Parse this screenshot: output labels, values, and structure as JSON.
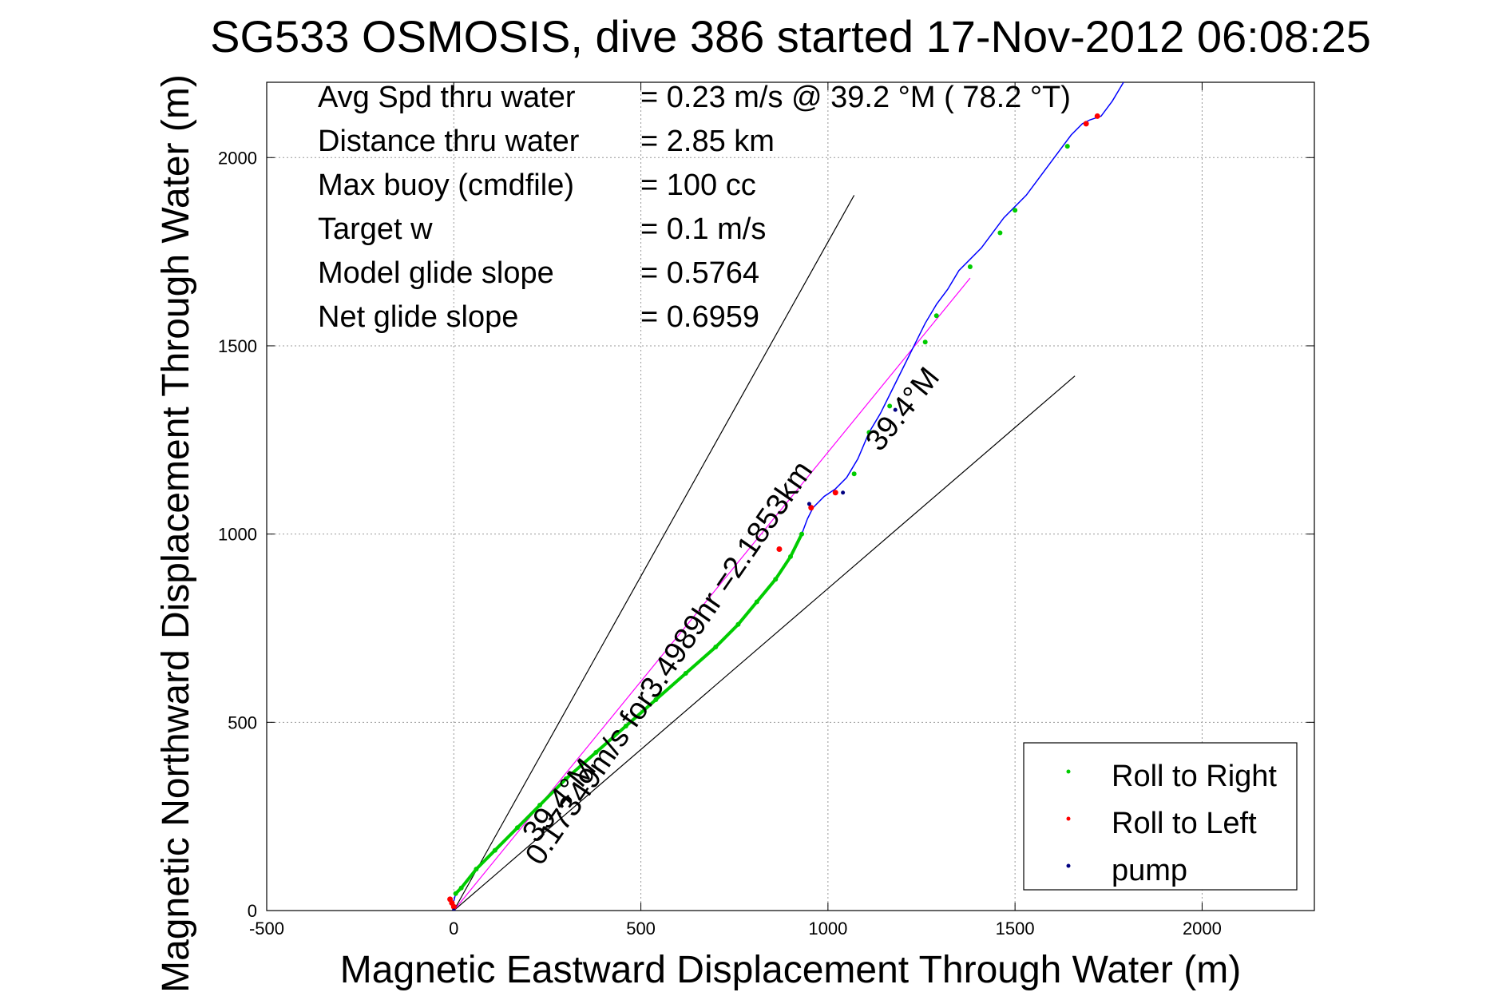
{
  "chart_data": {
    "type": "line",
    "title": "SG533 OSMOSIS, dive 386 started 17-Nov-2012 06:08:25",
    "xlabel": "Magnetic Eastward Displacement Through Water (m)",
    "ylabel": "Magnetic Northward Displacement Through Water (m)",
    "xlim": [
      -500,
      2300
    ],
    "ylim": [
      0,
      2200
    ],
    "xticks": [
      -500,
      0,
      500,
      1000,
      1500,
      2000
    ],
    "yticks": [
      0,
      500,
      1000,
      1500,
      2000
    ],
    "grid": true,
    "legend_position": "bottom-right",
    "info_text": [
      {
        "label": "Avg Spd thru water",
        "value": "=  0.23 m/s @  39.2 °M ( 78.2 °T)"
      },
      {
        "label": "Distance thru water",
        "value": "=  2.85 km"
      },
      {
        "label": "Max buoy (cmdfile)",
        "value": "= 100 cc"
      },
      {
        "label": "Target w",
        "value": "= 0.1 m/s"
      },
      {
        "label": "Model glide slope",
        "value": "= 0.5764"
      },
      {
        "label": "Net glide slope",
        "value": "= 0.6959"
      }
    ],
    "annotations": {
      "speed_text": "0.17349m/s for3.4989hr =2.1853km",
      "heading_text_low": "39.4°M",
      "heading_text_high": "39.4°M"
    },
    "legend": [
      {
        "label": "Roll to Right",
        "color": "#00cc00"
      },
      {
        "label": "Roll to Left",
        "color": "#ff0000"
      },
      {
        "label": "pump",
        "color": "#000080"
      }
    ],
    "reference_lines": [
      {
        "name": "cone-upper",
        "x": [
          0,
          1070
        ],
        "y": [
          0,
          1900
        ],
        "color": "#000000"
      },
      {
        "name": "cone-lower",
        "x": [
          0,
          1660
        ],
        "y": [
          0,
          1420
        ],
        "color": "#000000"
      },
      {
        "name": "heading-line",
        "x": [
          0,
          1380
        ],
        "y": [
          0,
          1680
        ],
        "color": "#ff00ff"
      }
    ],
    "track": {
      "color": "#0000ff",
      "x": [
        0,
        5,
        20,
        60,
        110,
        170,
        230,
        300,
        380,
        460,
        540,
        620,
        700,
        760,
        810,
        860,
        900,
        930,
        945,
        960,
        990,
        1020,
        1050,
        1080,
        1110,
        1140,
        1170,
        1200,
        1230,
        1260,
        1290,
        1320,
        1350,
        1380,
        1410,
        1440,
        1470,
        1500,
        1530,
        1560,
        1590,
        1620,
        1650,
        1680,
        1700,
        1730,
        1760,
        1790
      ],
      "y": [
        25,
        45,
        60,
        110,
        160,
        220,
        280,
        350,
        420,
        490,
        560,
        630,
        700,
        760,
        820,
        880,
        940,
        1000,
        1040,
        1070,
        1100,
        1120,
        1150,
        1200,
        1270,
        1320,
        1380,
        1440,
        1500,
        1560,
        1610,
        1650,
        1700,
        1730,
        1760,
        1800,
        1840,
        1870,
        1900,
        1940,
        1980,
        2020,
        2060,
        2090,
        2100,
        2110,
        2150,
        2200
      ]
    },
    "roll_right": {
      "x": [
        5,
        20,
        60,
        110,
        170,
        230,
        300,
        380,
        460,
        540,
        620,
        700,
        760,
        810,
        860,
        900,
        930,
        1070,
        1110,
        1165,
        1260,
        1290,
        1380,
        1460,
        1500,
        1640
      ],
      "y": [
        45,
        60,
        110,
        160,
        220,
        280,
        350,
        420,
        490,
        560,
        630,
        700,
        760,
        820,
        880,
        940,
        1000,
        1160,
        1270,
        1340,
        1510,
        1580,
        1710,
        1800,
        1860,
        2030
      ]
    },
    "roll_left": {
      "x": [
        -10,
        -5,
        0,
        870,
        955,
        1020,
        1690,
        1720
      ],
      "y": [
        30,
        20,
        10,
        960,
        1070,
        1110,
        2090,
        2110
      ]
    },
    "pump": {
      "x": [
        0,
        950,
        1040,
        1180
      ],
      "y": [
        0,
        1080,
        1110,
        1330
      ]
    }
  }
}
